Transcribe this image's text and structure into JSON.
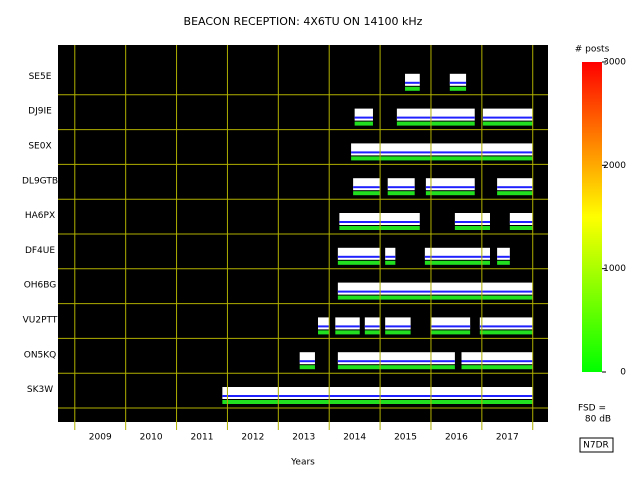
{
  "chart_data": {
    "type": "beacon",
    "title": "BEACON RECEPTION: 4X6TU ON 14100 kHz",
    "xlabel": "Years",
    "xlim": [
      2008.67,
      2018.3
    ],
    "xticks": [
      2009,
      2010,
      2011,
      2012,
      2013,
      2014,
      2015,
      2016,
      2017
    ],
    "grid_color": "#b0b000",
    "series": [
      {
        "name": "SE5E",
        "spans": [
          [
            2015.49,
            2015.78
          ],
          [
            2016.37,
            2016.69
          ]
        ]
      },
      {
        "name": "DJ9IE",
        "spans": [
          [
            2014.5,
            2014.86
          ],
          [
            2015.33,
            2016.86
          ],
          [
            2017.02,
            2018.0
          ]
        ]
      },
      {
        "name": "SE0X",
        "spans": [
          [
            2014.43,
            2018.0
          ]
        ]
      },
      {
        "name": "DL9GTB",
        "spans": [
          [
            2014.47,
            2015.0
          ],
          [
            2015.15,
            2015.68
          ],
          [
            2015.9,
            2016.86
          ],
          [
            2017.3,
            2018.0
          ]
        ]
      },
      {
        "name": "HA6PX",
        "spans": [
          [
            2014.2,
            2015.78
          ],
          [
            2016.47,
            2017.16
          ],
          [
            2017.55,
            2018.0
          ]
        ]
      },
      {
        "name": "DF4UE",
        "spans": [
          [
            2014.17,
            2015.0
          ],
          [
            2015.1,
            2015.3
          ],
          [
            2015.88,
            2017.16
          ],
          [
            2017.3,
            2017.55
          ]
        ]
      },
      {
        "name": "OH6BG",
        "spans": [
          [
            2014.17,
            2018.0
          ]
        ]
      },
      {
        "name": "VU2PTT",
        "spans": [
          [
            2013.78,
            2014.0
          ],
          [
            2014.12,
            2014.6
          ],
          [
            2014.7,
            2015.0
          ],
          [
            2015.1,
            2015.6
          ],
          [
            2015.99,
            2016.77
          ],
          [
            2016.96,
            2018.0
          ]
        ]
      },
      {
        "name": "ON5KQ",
        "spans": [
          [
            2013.42,
            2013.72
          ],
          [
            2014.17,
            2016.47
          ],
          [
            2016.6,
            2018.0
          ]
        ]
      },
      {
        "name": "SK3W",
        "spans": [
          [
            2011.9,
            2018.0
          ]
        ]
      }
    ],
    "colorbar_label": "# posts",
    "cblim": [
      0,
      3000
    ],
    "cbticks": [
      0,
      1000,
      2000,
      3000
    ],
    "cbcolors": [
      "#00ff00",
      "#ffff00",
      "#ff0000"
    ],
    "fsd_label": "FSD =",
    "fsd_value": "80 dB",
    "callsign": "N7DR"
  }
}
